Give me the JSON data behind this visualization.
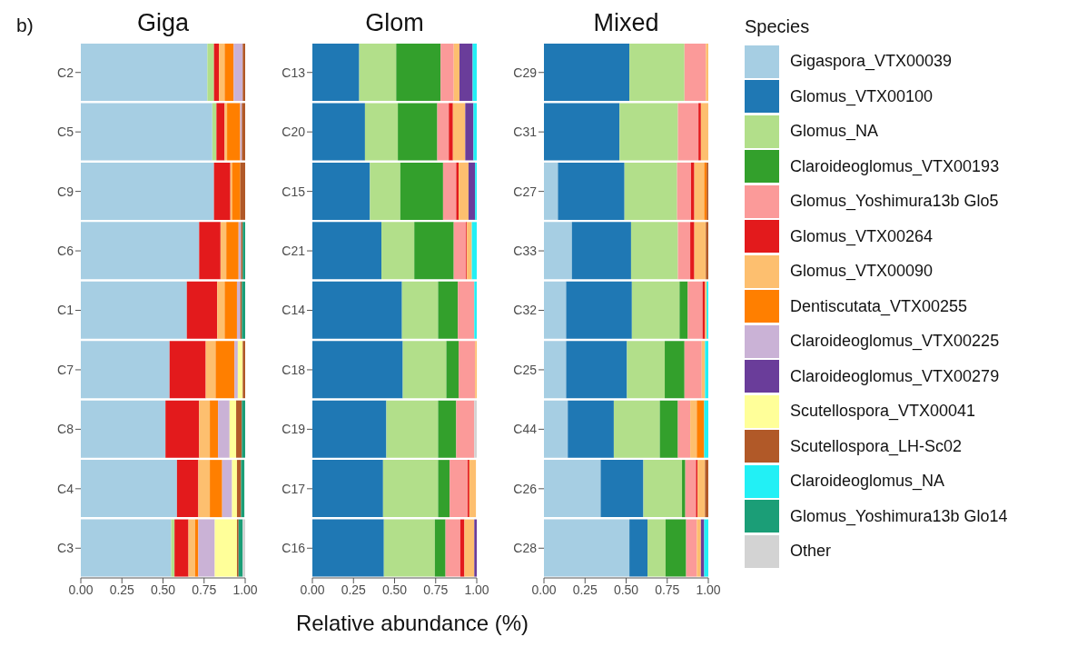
{
  "chart_data": [
    {
      "type": "bar",
      "orientation": "horizontal",
      "stacked": true,
      "title": "Giga",
      "annotations": [
        "b)"
      ],
      "legend": false,
      "categories": [
        "C2",
        "C5",
        "C9",
        "C6",
        "C1",
        "C7",
        "C8",
        "C4",
        "C3"
      ],
      "xlim": [
        0,
        1
      ],
      "xticks": [
        {
          "value": 0,
          "label": "0.00"
        },
        {
          "value": 0.25,
          "label": "0.25"
        },
        {
          "value": 0.5,
          "label": "0.50"
        },
        {
          "value": 0.75,
          "label": "0.75"
        },
        {
          "value": 1,
          "label": "1.00"
        }
      ],
      "series": [
        {
          "color": "#a6cee3",
          "values": [
            0.77,
            0.8,
            0.81,
            0.72,
            0.645,
            0.54,
            0.515,
            0.585,
            0.55
          ]
        },
        {
          "color": "#1f78b4",
          "values": [
            0,
            0,
            0,
            0,
            0,
            0,
            0,
            0,
            0
          ]
        },
        {
          "color": "#b2df8a",
          "values": [
            0.04,
            0.025,
            0,
            0,
            0,
            0,
            0,
            0,
            0.02
          ]
        },
        {
          "color": "#33a02c",
          "values": [
            0,
            0,
            0,
            0,
            0,
            0,
            0,
            0,
            0
          ]
        },
        {
          "color": "#fb9a99",
          "values": [
            0,
            0,
            0,
            0,
            0,
            0,
            0,
            0,
            0
          ]
        },
        {
          "color": "#e31a1c",
          "values": [
            0.03,
            0.05,
            0.1,
            0.13,
            0.185,
            0.22,
            0.205,
            0.13,
            0.085
          ]
        },
        {
          "color": "#fdbf6f",
          "values": [
            0.035,
            0.015,
            0.01,
            0.035,
            0.045,
            0.06,
            0.065,
            0.07,
            0.04
          ]
        },
        {
          "color": "#ff7f00",
          "values": [
            0.055,
            0.08,
            0.05,
            0.075,
            0.075,
            0.115,
            0.05,
            0.075,
            0.02
          ]
        },
        {
          "color": "#cab2d6",
          "values": [
            0.055,
            0.01,
            0,
            0.015,
            0.02,
            0.02,
            0.07,
            0.06,
            0.1
          ]
        },
        {
          "color": "#6a3d9a",
          "values": [
            0,
            0,
            0,
            0,
            0,
            0,
            0,
            0,
            0
          ]
        },
        {
          "color": "#ffff99",
          "values": [
            0,
            0,
            0,
            0,
            0,
            0.03,
            0.04,
            0.03,
            0.135
          ]
        },
        {
          "color": "#b15928",
          "values": [
            0.015,
            0.02,
            0.03,
            0.01,
            0.01,
            0.015,
            0.035,
            0.025,
            0.01
          ]
        },
        {
          "color": "#22f0f5",
          "values": [
            0,
            0,
            0,
            0,
            0,
            0,
            0,
            0,
            0
          ]
        },
        {
          "color": "#1b9e77",
          "values": [
            0,
            0,
            0,
            0.015,
            0.02,
            0,
            0.02,
            0.02,
            0.025
          ]
        },
        {
          "color": "#d3d3d3",
          "values": [
            0,
            0,
            0,
            0,
            0,
            0,
            0,
            null,
            0.015
          ]
        }
      ]
    },
    {
      "type": "bar",
      "orientation": "horizontal",
      "stacked": true,
      "title": "Glom",
      "xlabel": "Relative abundance (%)",
      "legend": false,
      "categories": [
        "C13",
        "C20",
        "C15",
        "C21",
        "C14",
        "C18",
        "C19",
        "C17",
        "C16"
      ],
      "xlim": [
        0,
        1
      ],
      "xticks": [
        {
          "value": 0,
          "label": "0.00"
        },
        {
          "value": 0.25,
          "label": "0.25"
        },
        {
          "value": 0.5,
          "label": "0.50"
        },
        {
          "value": 0.75,
          "label": "0.75"
        },
        {
          "value": 1,
          "label": "1.00"
        }
      ],
      "series": [
        {
          "color": "#a6cee3",
          "values": [
            0,
            0,
            0,
            0,
            0,
            0,
            0,
            0,
            0
          ]
        },
        {
          "color": "#1f78b4",
          "values": [
            0.285,
            0.32,
            0.35,
            0.42,
            0.545,
            0.55,
            0.45,
            0.43,
            0.435
          ]
        },
        {
          "color": "#b2df8a",
          "values": [
            0.225,
            0.2,
            0.185,
            0.2,
            0.22,
            0.265,
            0.315,
            0.335,
            0.31
          ]
        },
        {
          "color": "#33a02c",
          "values": [
            0.27,
            0.24,
            0.26,
            0.24,
            0.12,
            0.075,
            0.11,
            0.07,
            0.065
          ]
        },
        {
          "color": "#fb9a99",
          "values": [
            0.08,
            0.07,
            0.08,
            0.075,
            0.1,
            0.1,
            0.11,
            0.11,
            0.09
          ]
        },
        {
          "color": "#e31a1c",
          "values": [
            0,
            0.025,
            0.015,
            0.005,
            0,
            0,
            0,
            0.01,
            0.025
          ]
        },
        {
          "color": "#fdbf6f",
          "values": [
            0.035,
            0.075,
            0.06,
            0.03,
            0,
            0.01,
            0,
            0.04,
            0.06
          ]
        },
        {
          "color": "#ff7f00",
          "values": [
            0,
            0,
            0,
            0,
            0,
            0,
            0,
            0,
            0
          ]
        },
        {
          "color": "#cab2d6",
          "values": [
            0,
            0,
            0,
            0,
            0,
            0,
            0,
            0,
            0
          ]
        },
        {
          "color": "#6a3d9a",
          "values": [
            0.08,
            0.05,
            0.04,
            0,
            0,
            0,
            0,
            0,
            0.015
          ]
        },
        {
          "color": "#ffff99",
          "values": [
            0,
            0,
            0,
            0,
            0,
            0,
            0,
            0,
            0
          ]
        },
        {
          "color": "#b15928",
          "values": [
            0,
            0,
            0,
            0,
            0,
            0,
            0,
            0,
            0
          ]
        },
        {
          "color": "#22f0f5",
          "values": [
            0.025,
            0.02,
            0.01,
            0.03,
            0.015,
            0,
            0,
            0,
            0
          ]
        },
        {
          "color": "#1b9e77",
          "values": [
            0,
            0,
            0,
            0,
            0,
            0,
            0,
            0,
            0
          ]
        },
        {
          "color": "#d3d3d3",
          "values": [
            0,
            0,
            0,
            0,
            0,
            0,
            0.015,
            null,
            0
          ]
        }
      ]
    },
    {
      "type": "bar",
      "orientation": "horizontal",
      "stacked": true,
      "title": "Mixed",
      "legend": "right",
      "legend_title": "Species",
      "categories": [
        "C29",
        "C31",
        "C27",
        "C33",
        "C32",
        "C25",
        "C44",
        "C26",
        "C28"
      ],
      "xlim": [
        0,
        1
      ],
      "xticks": [
        {
          "value": 0,
          "label": "0.00"
        },
        {
          "value": 0.25,
          "label": "0.25"
        },
        {
          "value": 0.5,
          "label": "0.50"
        },
        {
          "value": 0.75,
          "label": "0.75"
        },
        {
          "value": 1,
          "label": "1.00"
        }
      ],
      "series": [
        {
          "name": "Gigaspora_VTX00039",
          "color": "#a6cee3",
          "values": [
            0,
            0,
            0.085,
            0.17,
            0.135,
            0.135,
            0.145,
            0.345,
            0.52
          ]
        },
        {
          "name": "Glomus_VTX00100",
          "color": "#1f78b4",
          "values": [
            0.52,
            0.46,
            0.405,
            0.36,
            0.4,
            0.37,
            0.28,
            0.26,
            0.11
          ]
        },
        {
          "name": "Glomus_NA",
          "color": "#b2df8a",
          "values": [
            0.335,
            0.355,
            0.32,
            0.285,
            0.29,
            0.23,
            0.28,
            0.235,
            0.11
          ]
        },
        {
          "name": "Claroideoglomus_VTX00193",
          "color": "#33a02c",
          "values": [
            0,
            0,
            0,
            0,
            0.05,
            0.12,
            0.11,
            0.02,
            0.125
          ]
        },
        {
          "name": "Glomus_Yoshimura13b Glo5",
          "color": "#fb9a99",
          "values": [
            0.13,
            0.125,
            0.085,
            0.075,
            0.09,
            0.105,
            0.075,
            0.065,
            0.065
          ]
        },
        {
          "name": "Glomus_VTX00264",
          "color": "#e31a1c",
          "values": [
            0,
            0.015,
            0.02,
            0.025,
            0.015,
            0,
            0,
            0.01,
            0
          ]
        },
        {
          "name": "Glomus_VTX00090",
          "color": "#fdbf6f",
          "values": [
            0.015,
            0.045,
            0.06,
            0.07,
            0.01,
            0.02,
            0.04,
            0.045,
            0.025
          ]
        },
        {
          "name": "Dentiscutata_VTX00255",
          "color": "#ff7f00",
          "values": [
            0,
            0,
            0.015,
            0,
            0,
            0,
            0.045,
            0,
            0
          ]
        },
        {
          "name": "Claroideoglomus_VTX00225",
          "color": "#cab2d6",
          "values": [
            0,
            0,
            0,
            0,
            0,
            0,
            0,
            0,
            0
          ]
        },
        {
          "name": "Claroideoglomus_VTX00279",
          "color": "#6a3d9a",
          "values": [
            0,
            0,
            0,
            0,
            0,
            0,
            0,
            0,
            0.02
          ]
        },
        {
          "name": "Scutellospora_VTX00041",
          "color": "#ffff99",
          "values": [
            0,
            0,
            0,
            0,
            0,
            0,
            0,
            0,
            0
          ]
        },
        {
          "name": "Scutellospora_LH-Sc02",
          "color": "#b15928",
          "values": [
            0,
            0,
            0.01,
            0.015,
            0,
            0,
            0,
            0.02,
            0
          ]
        },
        {
          "name": "Claroideoglomus_NA",
          "color": "#22f0f5",
          "values": [
            0,
            0,
            0,
            0,
            0.01,
            0.02,
            0.025,
            0,
            0.025
          ]
        },
        {
          "name": "Glomus_Yoshimura13b Glo14",
          "color": "#1b9e77",
          "values": [
            0,
            0,
            0,
            0,
            0,
            0,
            0,
            0,
            0
          ]
        },
        {
          "name": "Other",
          "color": "#d3d3d3",
          "values": [
            0,
            0,
            0,
            0,
            0,
            0,
            0,
            0,
            0
          ]
        }
      ]
    }
  ]
}
